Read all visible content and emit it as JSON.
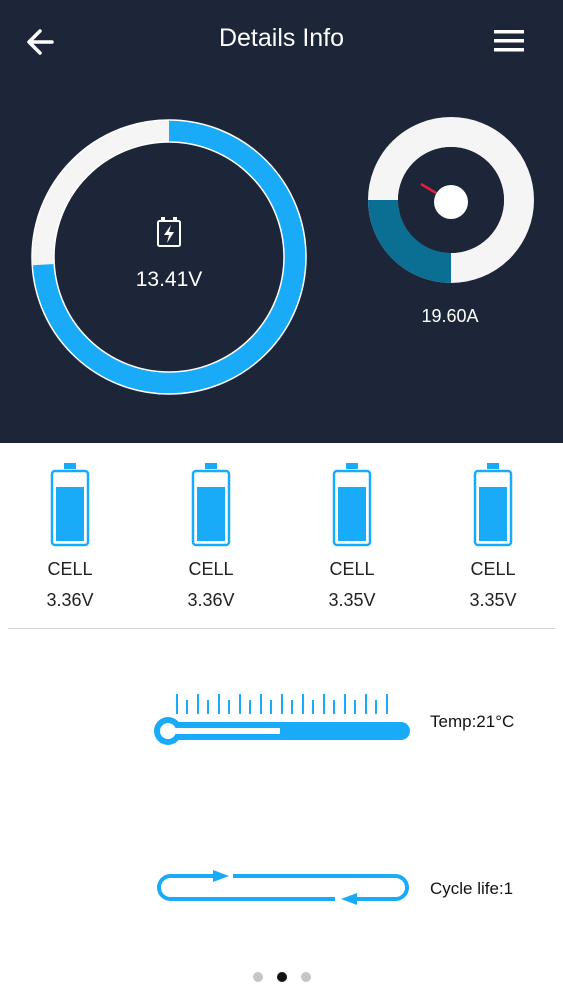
{
  "header": {
    "title": "Details Info",
    "back_icon": "back-arrow-icon",
    "menu_icon": "hamburger-menu-icon"
  },
  "gauges": {
    "voltage": {
      "value": "13.41V",
      "ring_fraction": 0.74,
      "icon": "battery-charge-icon"
    },
    "current": {
      "value": "19.60A",
      "ring_fraction": 0.25
    }
  },
  "cells": [
    {
      "label": "CELL",
      "value": "3.36V"
    },
    {
      "label": "CELL",
      "value": "3.36V"
    },
    {
      "label": "CELL",
      "value": "3.35V"
    },
    {
      "label": "CELL",
      "value": "3.35V"
    }
  ],
  "temperature": {
    "label": "Temp:21°C",
    "icon": "thermometer-icon"
  },
  "cycle": {
    "label": "Cycle life:1",
    "icon": "cycle-arrows-icon"
  },
  "pager": {
    "count": 3,
    "active": 2
  },
  "colors": {
    "header_bg": "#1d2538",
    "accent": "#1aabf8",
    "dark_accent": "#0b6f94",
    "ring_bg": "#f5f5f5"
  }
}
